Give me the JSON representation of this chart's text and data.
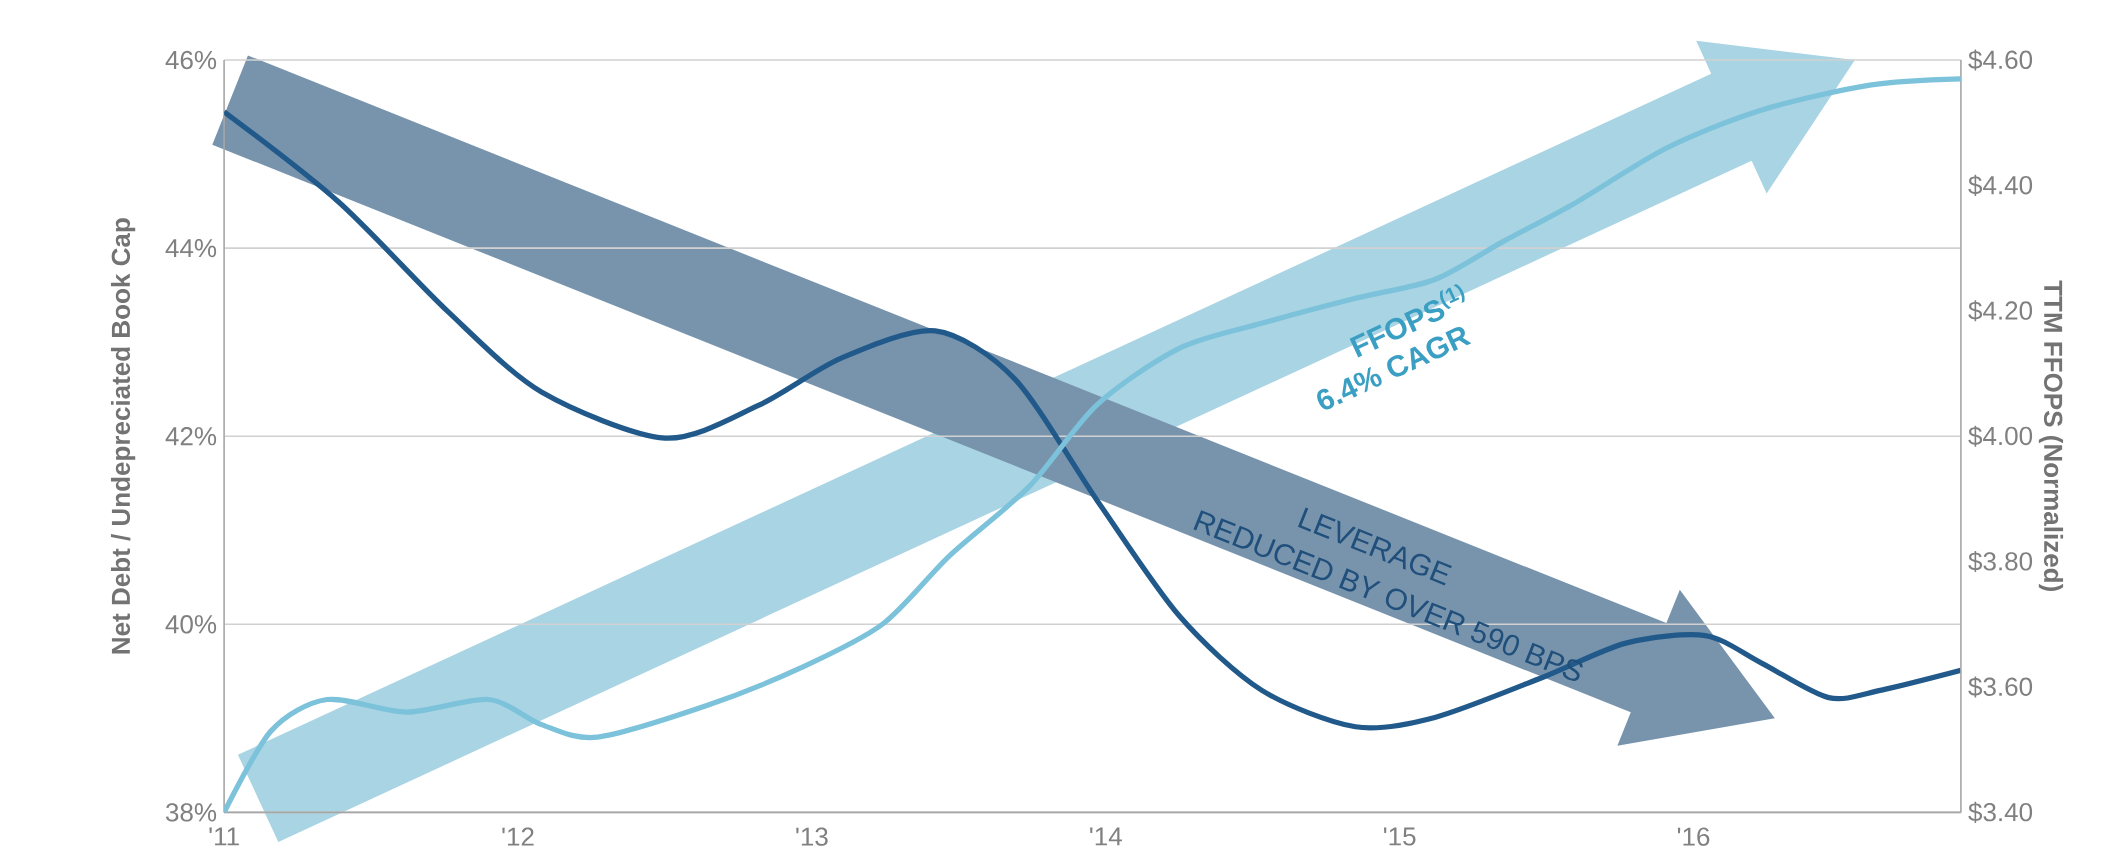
{
  "chart_data": {
    "type": "line",
    "ylabel": "Net Debt / Undepreciated Book Cap",
    "y2label": "TTM FFOPS (Normalized)",
    "xlim": [
      2011,
      2016.91
    ],
    "xticks": [
      {
        "value": 2011,
        "label": "'11"
      },
      {
        "value": 2012,
        "label": "'12"
      },
      {
        "value": 2013,
        "label": "'13"
      },
      {
        "value": 2014,
        "label": "'14"
      },
      {
        "value": 2015,
        "label": "'15"
      },
      {
        "value": 2016,
        "label": "'16"
      }
    ],
    "ylim": [
      38,
      46
    ],
    "yticks": [
      {
        "value": 38,
        "label": "38%"
      },
      {
        "value": 40,
        "label": "40%"
      },
      {
        "value": 42,
        "label": "42%"
      },
      {
        "value": 44,
        "label": "44%"
      },
      {
        "value": 46,
        "label": "46%"
      }
    ],
    "y2lim": [
      3.4,
      4.6
    ],
    "y2ticks": [
      {
        "value": 3.4,
        "label": "$3.40"
      },
      {
        "value": 3.6,
        "label": "$3.60"
      },
      {
        "value": 3.8,
        "label": "$3.80"
      },
      {
        "value": 4.0,
        "label": "$4.00"
      },
      {
        "value": 4.2,
        "label": "$4.20"
      },
      {
        "value": 4.4,
        "label": "$4.40"
      },
      {
        "value": 4.6,
        "label": "$4.60"
      }
    ],
    "grid": "y",
    "series": [
      {
        "color": "#215a8a",
        "x": [
          2011,
          2011.39,
          2011.76,
          2012.08,
          2012.5,
          2012.82,
          2013.1,
          2013.42,
          2013.69,
          2013.97,
          2014.25,
          2014.53,
          2014.85,
          2015.12,
          2015.49,
          2015.77,
          2016.04,
          2016.23,
          2016.46,
          2016.64,
          2016.91
        ],
        "values": [
          45.45,
          44.49,
          43.33,
          42.47,
          41.98,
          42.33,
          42.83,
          43.12,
          42.61,
          41.32,
          40.09,
          39.3,
          38.91,
          39.01,
          39.44,
          39.8,
          39.88,
          39.59,
          39.22,
          39.3,
          39.51
        ]
      },
      {
        "color": "#7cc2da",
        "axis": "y2",
        "x": [
          2011,
          2011.16,
          2011.35,
          2011.62,
          2011.9,
          2012.08,
          2012.27,
          2012.64,
          2012.96,
          2013.24,
          2013.47,
          2013.74,
          2013.97,
          2014.25,
          2014.53,
          2014.85,
          2015.12,
          2015.35,
          2015.59,
          2015.91,
          2016.23,
          2016.6,
          2016.91
        ],
        "values": [
          3.4,
          3.53,
          3.58,
          3.56,
          3.58,
          3.54,
          3.52,
          3.57,
          3.63,
          3.7,
          3.81,
          3.92,
          4.05,
          4.14,
          4.18,
          4.22,
          4.25,
          4.31,
          4.37,
          4.46,
          4.52,
          4.56,
          4.57
        ]
      }
    ],
    "annotations": [
      "FFOPS$^{(1)}$",
      "6.4% CAGR",
      "LEVERAGE",
      "REDUCED BY OVER 590 BPS"
    ]
  }
}
